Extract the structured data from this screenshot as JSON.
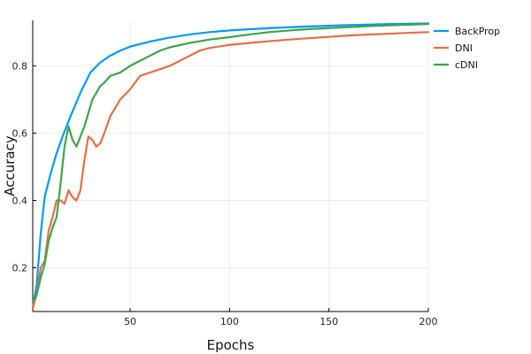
{
  "chart_data": {
    "type": "line",
    "title": "",
    "xlabel": "Epochs",
    "ylabel": "Accuracy",
    "xlim": [
      1,
      200
    ],
    "ylim": [
      0.07,
      0.935
    ],
    "xticks": [
      50,
      100,
      150,
      200
    ],
    "xtick_labels": [
      "50",
      "100",
      "150",
      "200"
    ],
    "yticks": [
      0.2,
      0.4,
      0.6,
      0.8
    ],
    "ytick_labels": [
      "0.2",
      "0.4",
      "0.6",
      "0.8"
    ],
    "grid": true,
    "legend_position": "outside-right-top",
    "series": [
      {
        "name": "BackProp",
        "color": "#009af9",
        "x": [
          1,
          3,
          5,
          7,
          10,
          13,
          16,
          20,
          25,
          30,
          35,
          40,
          45,
          50,
          60,
          70,
          80,
          90,
          100,
          120,
          140,
          160,
          180,
          200
        ],
        "y": [
          0.08,
          0.15,
          0.3,
          0.41,
          0.48,
          0.54,
          0.59,
          0.65,
          0.72,
          0.78,
          0.81,
          0.83,
          0.845,
          0.857,
          0.872,
          0.884,
          0.893,
          0.9,
          0.905,
          0.912,
          0.917,
          0.921,
          0.924,
          0.926
        ]
      },
      {
        "name": "DNI",
        "color": "#e26f46",
        "x": [
          1,
          3,
          5,
          7,
          9,
          11,
          13,
          15,
          17,
          19,
          21,
          23,
          25,
          27,
          29,
          31,
          33,
          35,
          37,
          40,
          45,
          50,
          55,
          60,
          65,
          70,
          75,
          80,
          85,
          90,
          100,
          110,
          120,
          130,
          140,
          150,
          160,
          170,
          180,
          190,
          200
        ],
        "y": [
          0.08,
          0.12,
          0.2,
          0.22,
          0.31,
          0.35,
          0.4,
          0.4,
          0.39,
          0.43,
          0.41,
          0.4,
          0.43,
          0.52,
          0.59,
          0.58,
          0.56,
          0.57,
          0.6,
          0.65,
          0.7,
          0.73,
          0.77,
          0.78,
          0.79,
          0.8,
          0.815,
          0.83,
          0.845,
          0.853,
          0.862,
          0.868,
          0.873,
          0.878,
          0.882,
          0.886,
          0.89,
          0.893,
          0.895,
          0.898,
          0.9
        ]
      },
      {
        "name": "cDNI",
        "color": "#3da44d",
        "x": [
          1,
          3,
          5,
          7,
          9,
          11,
          13,
          15,
          17,
          19,
          21,
          23,
          25,
          27,
          29,
          31,
          33,
          35,
          37,
          40,
          45,
          50,
          55,
          60,
          65,
          70,
          80,
          90,
          100,
          110,
          120,
          130,
          140,
          150,
          160,
          170,
          180,
          190,
          200
        ],
        "y": [
          0.1,
          0.12,
          0.17,
          0.21,
          0.28,
          0.32,
          0.35,
          0.45,
          0.56,
          0.62,
          0.58,
          0.56,
          0.59,
          0.62,
          0.66,
          0.7,
          0.72,
          0.74,
          0.75,
          0.77,
          0.78,
          0.8,
          0.815,
          0.83,
          0.845,
          0.855,
          0.868,
          0.878,
          0.885,
          0.893,
          0.9,
          0.905,
          0.909,
          0.912,
          0.915,
          0.918,
          0.92,
          0.922,
          0.924
        ]
      }
    ]
  }
}
